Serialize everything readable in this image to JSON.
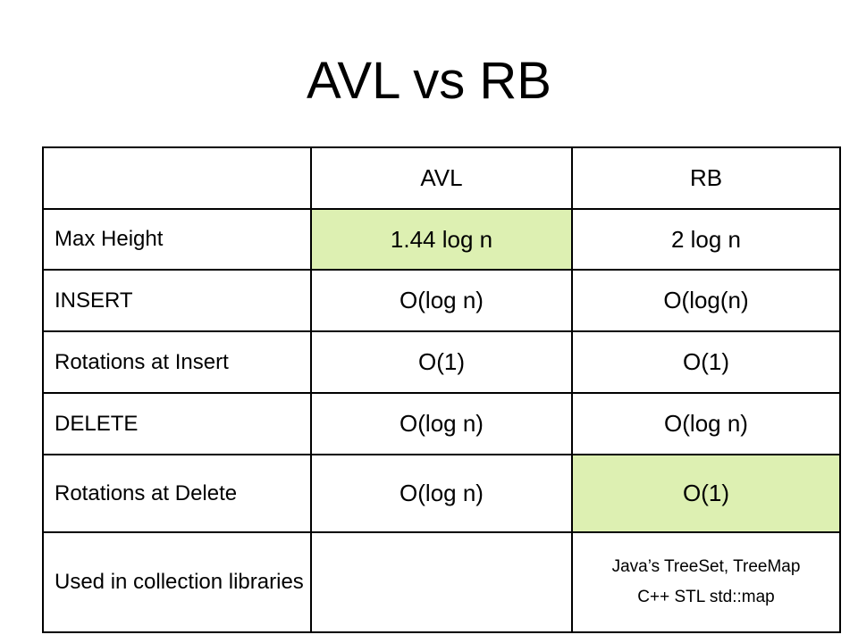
{
  "slide": {
    "title": "AVL vs RB"
  },
  "table": {
    "headers": [
      "",
      "AVL",
      "RB"
    ],
    "rows": [
      {
        "label": "Max Height",
        "avl": "1.44 log n",
        "rb": "2 log n"
      },
      {
        "label": "INSERT",
        "avl": "O(log n)",
        "rb": "O(log(n)"
      },
      {
        "label": "Rotations at Insert",
        "avl": "O(1)",
        "rb": "O(1)"
      },
      {
        "label": "DELETE",
        "avl": "O(log n)",
        "rb": "O(log n)"
      },
      {
        "label": "Rotations at Delete",
        "avl": "O(log n)",
        "rb": "O(1)"
      },
      {
        "label": "Used in collection libraries",
        "avl": "",
        "rb_lines": [
          "Java’s TreeSet, TreeMap",
          "C++ STL std::map"
        ]
      }
    ],
    "highlight_color": "#ddf0b2"
  }
}
